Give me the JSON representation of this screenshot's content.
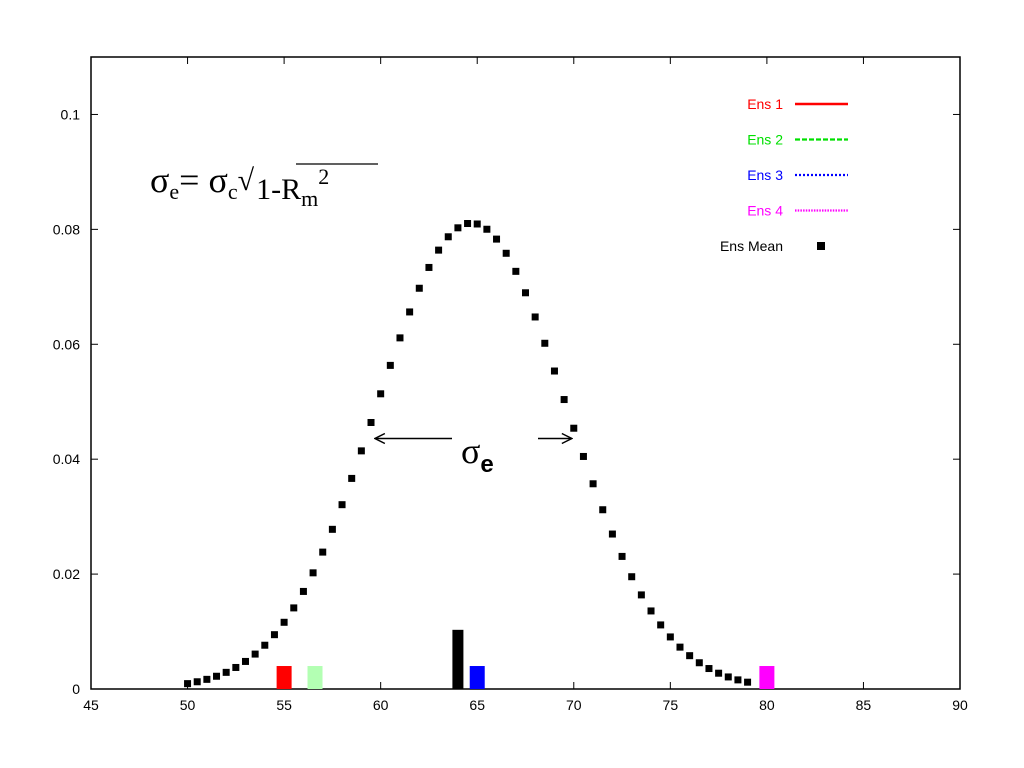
{
  "chart_data": {
    "type": "scatter",
    "title": "",
    "xlabel": "",
    "ylabel": "",
    "xlim": [
      45,
      90
    ],
    "ylim": [
      0,
      0.11
    ],
    "x_ticks": [
      45,
      50,
      55,
      60,
      65,
      70,
      75,
      80,
      85,
      90
    ],
    "y_ticks": [
      0,
      0.02,
      0.04,
      0.06,
      0.08,
      0.1
    ],
    "y_tick_labels": [
      "0",
      "0.02",
      "0.04",
      "0.06",
      "0.08",
      "0.1"
    ],
    "grid": false,
    "legend_position": "top-right",
    "legend": [
      {
        "label": "Ens 1",
        "color": "#ff0000",
        "style": "solid"
      },
      {
        "label": "Ens 2",
        "color": "#00e000",
        "style": "dashed"
      },
      {
        "label": "Ens 3",
        "color": "#0000ff",
        "style": "dotted"
      },
      {
        "label": "Ens 4",
        "color": "#ff00ff",
        "style": "dotted-fine"
      },
      {
        "label": "Ens Mean",
        "color": "#000000",
        "style": "points"
      }
    ],
    "ens_mean_curve": {
      "name": "Ens Mean",
      "distribution": "normal",
      "mean": 64.7,
      "sigma": 4.92,
      "x_start": 50.0,
      "x_end": 79.4,
      "x_step": 0.5
    },
    "ensemble_markers": [
      {
        "name": "Ens 1",
        "x": 55.0,
        "height": 0.004,
        "color": "#ff0000"
      },
      {
        "name": "Ens 2",
        "x": 56.6,
        "height": 0.004,
        "color": "#b3ffb3"
      },
      {
        "name": "Ens Mean",
        "x": 64.0,
        "height": 0.0103,
        "color": "#000000"
      },
      {
        "name": "Ens 3",
        "x": 65.0,
        "height": 0.004,
        "color": "#0000ff"
      },
      {
        "name": "Ens 4",
        "x": 80.0,
        "height": 0.004,
        "color": "#ff00ff"
      }
    ],
    "annotations": {
      "formula": {
        "sigma": "σ",
        "e": "e",
        "equals_sigma": "= σ",
        "c": "c",
        "radical": "√",
        "expr": "1-R",
        "m": "m",
        "exp": "2"
      },
      "sigma_arrow": {
        "label_sigma": "σ",
        "label_sub": "e",
        "x_left": 59.7,
        "x_right": 69.9,
        "y": 0.0436
      }
    }
  }
}
